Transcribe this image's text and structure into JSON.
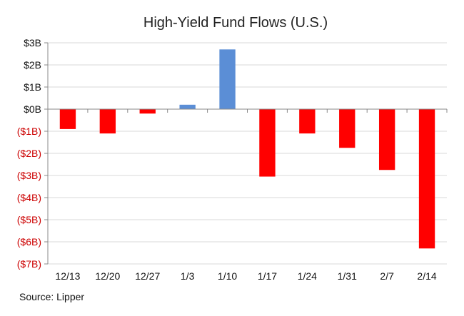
{
  "chart_data": {
    "type": "bar",
    "title": "High-Yield Fund Flows (U.S.)",
    "xlabel": "",
    "ylabel": "",
    "categories": [
      "12/13",
      "12/20",
      "12/27",
      "1/3",
      "1/10",
      "1/17",
      "1/24",
      "1/31",
      "2/7",
      "2/14"
    ],
    "values": [
      -0.9,
      -1.1,
      -0.2,
      0.2,
      2.7,
      -3.05,
      -1.1,
      -1.75,
      -2.75,
      -6.3
    ],
    "ylim": [
      -7,
      3
    ],
    "yticks": [
      3,
      2,
      1,
      0,
      -1,
      -2,
      -3,
      -4,
      -5,
      -6,
      -7
    ],
    "ytick_labels": [
      "$3B",
      "$2B",
      "$1B",
      "$0B",
      "($1B)",
      "($2B)",
      "($3B)",
      "($4B)",
      "($5B)",
      "($6B)",
      "($7B)"
    ],
    "grid": true,
    "source": "Source: Lipper",
    "colors": {
      "positive_bar": "#5b8ed6",
      "negative_bar": "#ff0000",
      "positive_tick_text": "#111111",
      "negative_tick_text": "#cc0000"
    }
  }
}
